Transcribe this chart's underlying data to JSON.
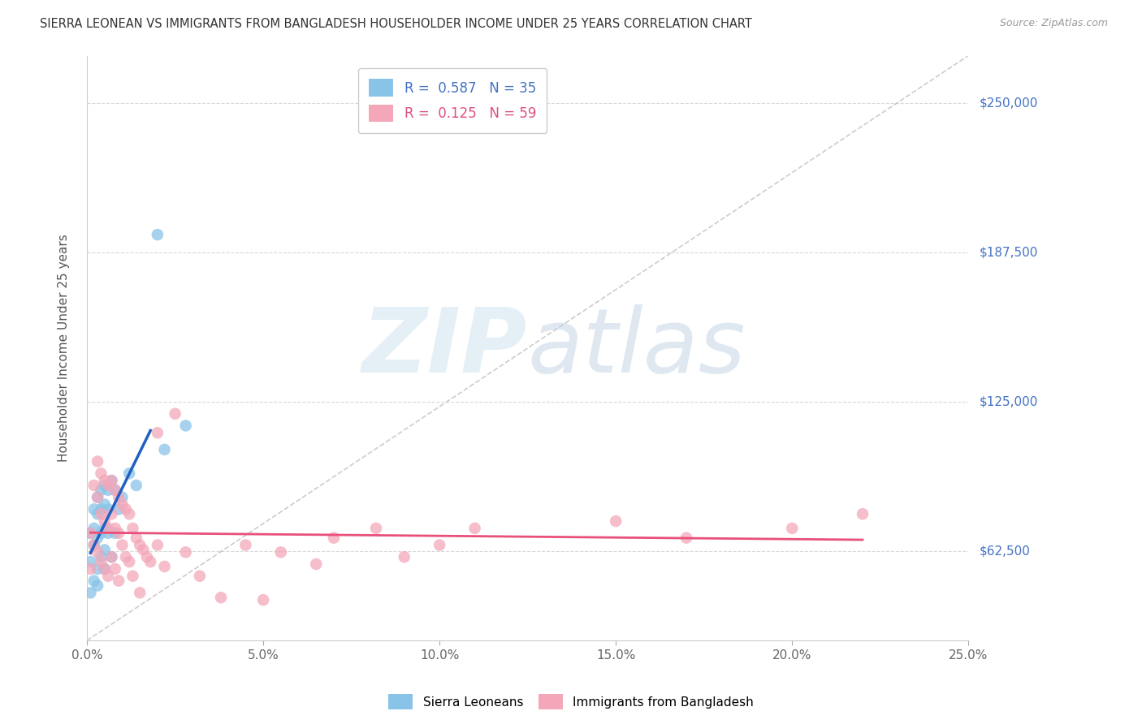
{
  "title": "SIERRA LEONEAN VS IMMIGRANTS FROM BANGLADESH HOUSEHOLDER INCOME UNDER 25 YEARS CORRELATION CHART",
  "source": "Source: ZipAtlas.com",
  "ylabel": "Householder Income Under 25 years",
  "xlabel_ticks": [
    "0.0%",
    "5.0%",
    "10.0%",
    "15.0%",
    "20.0%",
    "25.0%"
  ],
  "xlabel_vals": [
    0.0,
    0.05,
    0.1,
    0.15,
    0.2,
    0.25
  ],
  "ylabel_ticks": [
    "$62,500",
    "$125,000",
    "$187,500",
    "$250,000"
  ],
  "ylabel_vals": [
    62500,
    125000,
    187500,
    250000
  ],
  "xlim": [
    0.0,
    0.25
  ],
  "ylim": [
    25000,
    270000
  ],
  "legend_blue_R": "0.587",
  "legend_blue_N": "35",
  "legend_pink_R": "0.125",
  "legend_pink_N": "59",
  "blue_color": "#89c4e8",
  "pink_color": "#f4a7b9",
  "blue_line_color": "#2060c0",
  "pink_line_color": "#e8507a",
  "diagonal_color": "#c0c0c0",
  "blue_scatter_x": [
    0.001,
    0.001,
    0.001,
    0.002,
    0.002,
    0.002,
    0.002,
    0.003,
    0.003,
    0.003,
    0.003,
    0.003,
    0.004,
    0.004,
    0.004,
    0.004,
    0.005,
    0.005,
    0.005,
    0.005,
    0.005,
    0.006,
    0.006,
    0.006,
    0.007,
    0.007,
    0.008,
    0.008,
    0.009,
    0.01,
    0.012,
    0.014,
    0.02,
    0.022,
    0.028
  ],
  "blue_scatter_y": [
    70000,
    58000,
    45000,
    80000,
    72000,
    65000,
    50000,
    85000,
    78000,
    68000,
    55000,
    48000,
    88000,
    80000,
    70000,
    60000,
    90000,
    82000,
    72000,
    63000,
    55000,
    88000,
    80000,
    70000,
    92000,
    60000,
    88000,
    70000,
    80000,
    85000,
    95000,
    90000,
    195000,
    105000,
    115000
  ],
  "pink_scatter_x": [
    0.001,
    0.001,
    0.002,
    0.002,
    0.003,
    0.003,
    0.003,
    0.004,
    0.004,
    0.004,
    0.005,
    0.005,
    0.005,
    0.006,
    0.006,
    0.006,
    0.007,
    0.007,
    0.007,
    0.008,
    0.008,
    0.008,
    0.009,
    0.009,
    0.009,
    0.01,
    0.01,
    0.011,
    0.011,
    0.012,
    0.012,
    0.013,
    0.013,
    0.014,
    0.015,
    0.015,
    0.016,
    0.017,
    0.018,
    0.02,
    0.02,
    0.022,
    0.025,
    0.028,
    0.032,
    0.038,
    0.045,
    0.05,
    0.055,
    0.065,
    0.07,
    0.082,
    0.09,
    0.1,
    0.11,
    0.15,
    0.17,
    0.2,
    0.22
  ],
  "pink_scatter_y": [
    70000,
    55000,
    90000,
    65000,
    100000,
    85000,
    62000,
    95000,
    78000,
    58000,
    92000,
    75000,
    55000,
    90000,
    72000,
    52000,
    92000,
    78000,
    60000,
    88000,
    72000,
    55000,
    85000,
    70000,
    50000,
    82000,
    65000,
    80000,
    60000,
    78000,
    58000,
    72000,
    52000,
    68000,
    65000,
    45000,
    63000,
    60000,
    58000,
    112000,
    65000,
    56000,
    120000,
    62000,
    52000,
    43000,
    65000,
    42000,
    62000,
    57000,
    68000,
    72000,
    60000,
    65000,
    72000,
    75000,
    68000,
    72000,
    78000
  ],
  "blue_line_x": [
    0.001,
    0.02
  ],
  "blue_line_y_intercept": 45000,
  "blue_line_slope": 9000000,
  "pink_line_x": [
    0.001,
    0.22
  ],
  "pink_line_y_intercept": 62000,
  "pink_line_slope": 85000
}
